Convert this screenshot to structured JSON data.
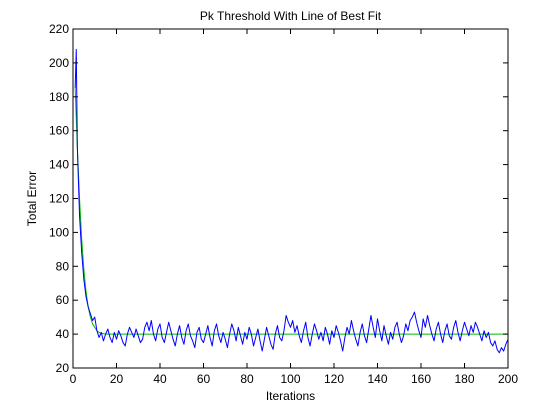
{
  "chart_data": {
    "type": "line",
    "title": "Pk Threshold With Line of Best Fit",
    "xlabel": "Iterations",
    "ylabel": "Total Error",
    "xlim": [
      0,
      200
    ],
    "ylim": [
      20,
      220
    ],
    "xticks": [
      0,
      20,
      40,
      60,
      80,
      100,
      120,
      140,
      160,
      180,
      200
    ],
    "yticks": [
      20,
      40,
      60,
      80,
      100,
      120,
      140,
      160,
      180,
      200,
      220
    ],
    "grid": false,
    "series": [
      {
        "color": "#0000ff",
        "points": [
          [
            1,
            185
          ],
          [
            1.5,
            208
          ],
          [
            2,
            150
          ],
          [
            3,
            110
          ],
          [
            4,
            88
          ],
          [
            5,
            72
          ],
          [
            6,
            62
          ],
          [
            7,
            56
          ],
          [
            8,
            52
          ],
          [
            9,
            48
          ],
          [
            10,
            50
          ],
          [
            11,
            42
          ],
          [
            12,
            38
          ],
          [
            13,
            41
          ],
          [
            14,
            36
          ],
          [
            15,
            40
          ],
          [
            16,
            43
          ],
          [
            17,
            38
          ],
          [
            18,
            35
          ],
          [
            19,
            41
          ],
          [
            20,
            37
          ],
          [
            21,
            42
          ],
          [
            22,
            39
          ],
          [
            23,
            35
          ],
          [
            24,
            33
          ],
          [
            25,
            40
          ],
          [
            26,
            44
          ],
          [
            27,
            41
          ],
          [
            28,
            38
          ],
          [
            29,
            43
          ],
          [
            30,
            39
          ],
          [
            31,
            35
          ],
          [
            32,
            37
          ],
          [
            33,
            44
          ],
          [
            34,
            47
          ],
          [
            35,
            42
          ],
          [
            36,
            48
          ],
          [
            37,
            40
          ],
          [
            38,
            36
          ],
          [
            39,
            43
          ],
          [
            40,
            46
          ],
          [
            41,
            38
          ],
          [
            42,
            35
          ],
          [
            43,
            41
          ],
          [
            44,
            47
          ],
          [
            45,
            42
          ],
          [
            46,
            37
          ],
          [
            47,
            33
          ],
          [
            48,
            40
          ],
          [
            49,
            45
          ],
          [
            50,
            38
          ],
          [
            51,
            34
          ],
          [
            52,
            42
          ],
          [
            53,
            46
          ],
          [
            54,
            39
          ],
          [
            55,
            36
          ],
          [
            56,
            32
          ],
          [
            57,
            41
          ],
          [
            58,
            44
          ],
          [
            59,
            37
          ],
          [
            60,
            35
          ],
          [
            61,
            40
          ],
          [
            62,
            45
          ],
          [
            63,
            38
          ],
          [
            64,
            33
          ],
          [
            65,
            42
          ],
          [
            66,
            46
          ],
          [
            67,
            39
          ],
          [
            68,
            35
          ],
          [
            69,
            41
          ],
          [
            70,
            37
          ],
          [
            71,
            32
          ],
          [
            72,
            40
          ],
          [
            73,
            46
          ],
          [
            74,
            42
          ],
          [
            75,
            36
          ],
          [
            76,
            44
          ],
          [
            77,
            39
          ],
          [
            78,
            34
          ],
          [
            79,
            41
          ],
          [
            80,
            37
          ],
          [
            81,
            44
          ],
          [
            82,
            40
          ],
          [
            83,
            33
          ],
          [
            84,
            38
          ],
          [
            85,
            43
          ],
          [
            86,
            36
          ],
          [
            87,
            30
          ],
          [
            88,
            37
          ],
          [
            89,
            44
          ],
          [
            90,
            39
          ],
          [
            91,
            34
          ],
          [
            92,
            31
          ],
          [
            93,
            40
          ],
          [
            94,
            45
          ],
          [
            95,
            38
          ],
          [
            96,
            36
          ],
          [
            97,
            42
          ],
          [
            98,
            51
          ],
          [
            99,
            47
          ],
          [
            100,
            44
          ],
          [
            101,
            48
          ],
          [
            102,
            41
          ],
          [
            103,
            45
          ],
          [
            104,
            39
          ],
          [
            105,
            35
          ],
          [
            106,
            42
          ],
          [
            107,
            47
          ],
          [
            108,
            38
          ],
          [
            109,
            33
          ],
          [
            110,
            40
          ],
          [
            111,
            46
          ],
          [
            112,
            42
          ],
          [
            113,
            37
          ],
          [
            114,
            41
          ],
          [
            115,
            36
          ],
          [
            116,
            44
          ],
          [
            117,
            40
          ],
          [
            118,
            34
          ],
          [
            119,
            42
          ],
          [
            120,
            38
          ],
          [
            121,
            45
          ],
          [
            122,
            41
          ],
          [
            123,
            36
          ],
          [
            124,
            30
          ],
          [
            125,
            38
          ],
          [
            126,
            44
          ],
          [
            127,
            40
          ],
          [
            128,
            48
          ],
          [
            129,
            42
          ],
          [
            130,
            37
          ],
          [
            131,
            33
          ],
          [
            132,
            41
          ],
          [
            133,
            46
          ],
          [
            134,
            39
          ],
          [
            135,
            35
          ],
          [
            136,
            43
          ],
          [
            137,
            51
          ],
          [
            138,
            44
          ],
          [
            139,
            38
          ],
          [
            140,
            49
          ],
          [
            141,
            42
          ],
          [
            142,
            36
          ],
          [
            143,
            45
          ],
          [
            144,
            39
          ],
          [
            145,
            34
          ],
          [
            146,
            41
          ],
          [
            147,
            37
          ],
          [
            148,
            44
          ],
          [
            149,
            47
          ],
          [
            150,
            40
          ],
          [
            151,
            35
          ],
          [
            152,
            39
          ],
          [
            153,
            46
          ],
          [
            154,
            42
          ],
          [
            155,
            48
          ],
          [
            156,
            50
          ],
          [
            157,
            53
          ],
          [
            158,
            47
          ],
          [
            159,
            42
          ],
          [
            160,
            38
          ],
          [
            161,
            49
          ],
          [
            162,
            44
          ],
          [
            163,
            51
          ],
          [
            164,
            45
          ],
          [
            165,
            40
          ],
          [
            166,
            36
          ],
          [
            167,
            43
          ],
          [
            168,
            47
          ],
          [
            169,
            40
          ],
          [
            170,
            35
          ],
          [
            171,
            42
          ],
          [
            172,
            46
          ],
          [
            173,
            39
          ],
          [
            174,
            37
          ],
          [
            175,
            44
          ],
          [
            176,
            48
          ],
          [
            177,
            41
          ],
          [
            178,
            36
          ],
          [
            179,
            42
          ],
          [
            180,
            47
          ],
          [
            181,
            43
          ],
          [
            182,
            39
          ],
          [
            183,
            45
          ],
          [
            184,
            41
          ],
          [
            185,
            47
          ],
          [
            186,
            44
          ],
          [
            187,
            40
          ],
          [
            188,
            36
          ],
          [
            189,
            42
          ],
          [
            190,
            38
          ],
          [
            191,
            41
          ],
          [
            192,
            35
          ],
          [
            193,
            33
          ],
          [
            194,
            36
          ],
          [
            195,
            31
          ],
          [
            196,
            29
          ],
          [
            197,
            32
          ],
          [
            198,
            30
          ],
          [
            199,
            34
          ],
          [
            200,
            37
          ]
        ]
      },
      {
        "color": "#00bb00",
        "points": [
          [
            1,
            185
          ],
          [
            2,
            150
          ],
          [
            3,
            120
          ],
          [
            4,
            96
          ],
          [
            5,
            78
          ],
          [
            6,
            65
          ],
          [
            7,
            56
          ],
          [
            8,
            50
          ],
          [
            9,
            46
          ],
          [
            10,
            44
          ],
          [
            11,
            42
          ],
          [
            12,
            41
          ],
          [
            13,
            40.5
          ],
          [
            14,
            40.2
          ],
          [
            16,
            40
          ],
          [
            200,
            40
          ]
        ]
      }
    ]
  }
}
